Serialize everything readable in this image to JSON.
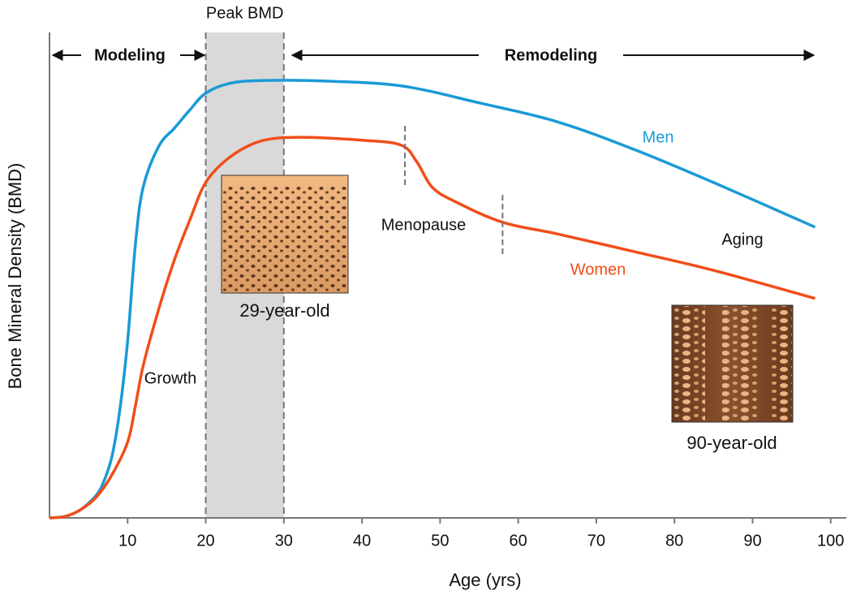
{
  "chart_data": {
    "type": "line",
    "xlabel": "Age (yrs)",
    "ylabel": "Bone Mineral Density (BMD)",
    "xlim": [
      0,
      102
    ],
    "ylim": [
      0,
      100
    ],
    "xticks": [
      10,
      20,
      30,
      40,
      50,
      60,
      70,
      80,
      90,
      100
    ],
    "shaded_region": {
      "label": "Peak BMD",
      "range": [
        20,
        30
      ]
    },
    "menopause_markers": [
      45.5,
      58
    ],
    "annotations": {
      "modeling": "Modeling",
      "remodeling": "Remodeling",
      "menopause": "Menopause",
      "aging": "Aging",
      "growth": "Growth",
      "young_bone": "29-year-old",
      "old_bone": "90-year-old"
    },
    "series": [
      {
        "name": "Men",
        "color": "#1a9ad6",
        "x": [
          0,
          2,
          4,
          6,
          7,
          8,
          9,
          10,
          11,
          12,
          14,
          16,
          18,
          20,
          23,
          27,
          35,
          45,
          55,
          65,
          75,
          85,
          98
        ],
        "values": [
          0,
          0.3,
          1.7,
          4.7,
          7.7,
          12.7,
          22.2,
          36.4,
          56.4,
          68.2,
          76.6,
          80.3,
          84.1,
          87.5,
          89.5,
          90.1,
          90,
          89,
          85.5,
          81.6,
          75.8,
          69.1,
          59.9
        ]
      },
      {
        "name": "Women",
        "color": "#f04e1a",
        "x": [
          0,
          2,
          4,
          6,
          8,
          10,
          11,
          12,
          14,
          16,
          18,
          20,
          23,
          27,
          32,
          40,
          45,
          47,
          49,
          52,
          58,
          65,
          75,
          85,
          98
        ],
        "values": [
          0,
          0.3,
          1.7,
          4.3,
          8.9,
          15.6,
          23.1,
          31.4,
          43.1,
          53.2,
          61.5,
          69.1,
          74.2,
          77.6,
          78.4,
          77.8,
          76.8,
          73.4,
          68.1,
          65.1,
          60.9,
          58.5,
          54.8,
          51,
          45.2
        ]
      }
    ]
  }
}
